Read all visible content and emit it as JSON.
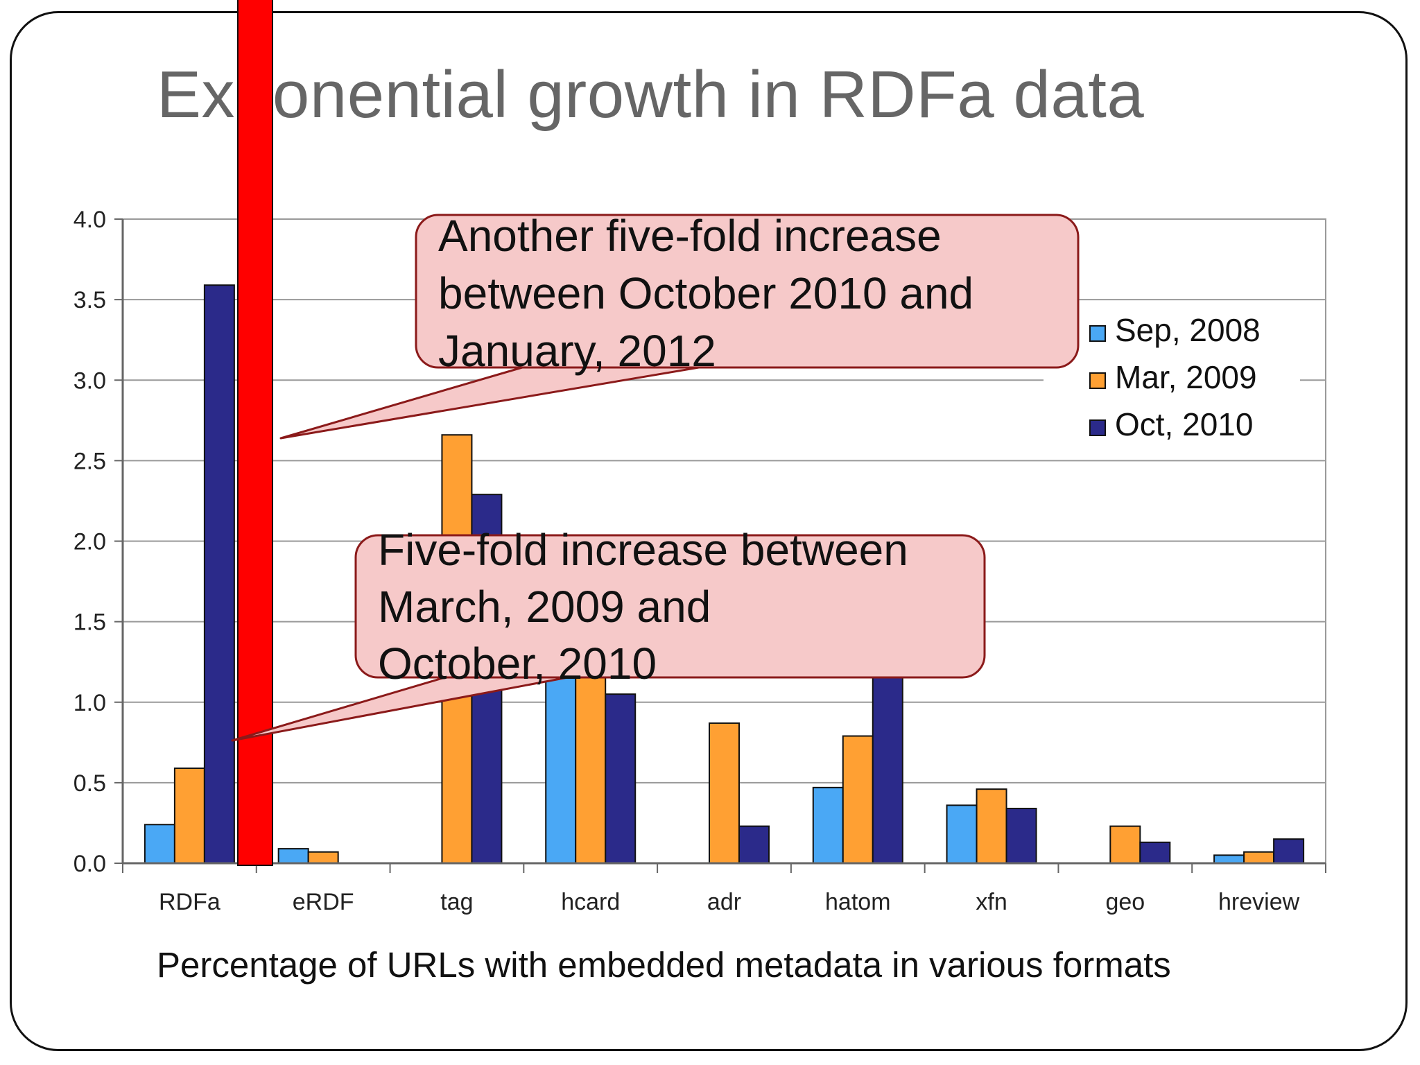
{
  "slide": {
    "title": "Exponential growth in RDFa data",
    "caption": "Percentage of URLs with embedded metadata in various formats"
  },
  "callouts": [
    {
      "id": "callout-top",
      "lines": [
        "Another five-fold increase",
        "between October 2010 and",
        "January, 2012"
      ]
    },
    {
      "id": "callout-bottom",
      "lines": [
        "Five-fold increase between",
        "March, 2009 and",
        "October, 2010"
      ]
    }
  ],
  "colors": {
    "sep_2008": "#4aa8f5",
    "mar_2009": "#ffa033",
    "oct_2010": "#2b2a8a",
    "highlight": "#ff0000",
    "callout_fill": "#f6c9c9",
    "callout_stroke": "#8b1a1a",
    "title": "#666666"
  },
  "chart_data": {
    "type": "bar",
    "categories": [
      "RDFa",
      "eRDF",
      "tag",
      "hcard",
      "adr",
      "hatom",
      "xfn",
      "geo",
      "hreview"
    ],
    "series": [
      {
        "name": "Sep, 2008",
        "values": [
          0.24,
          0.09,
          0,
          1.38,
          0,
          0.47,
          0.36,
          0,
          0.05
        ]
      },
      {
        "name": "Mar, 2009",
        "values": [
          0.59,
          0.07,
          2.66,
          1.17,
          0.87,
          0.79,
          0.46,
          0.23,
          0.07
        ]
      },
      {
        "name": "Oct, 2010",
        "values": [
          3.59,
          0,
          2.29,
          1.05,
          0.23,
          1.3,
          0.34,
          0.13,
          0.15
        ]
      }
    ],
    "yticks": [
      "0.0",
      "0.5",
      "1.0",
      "1.5",
      "2.0",
      "2.5",
      "3.0",
      "3.5",
      "4.0"
    ],
    "ylim": [
      0,
      4
    ],
    "grid": true,
    "legend": "right"
  }
}
